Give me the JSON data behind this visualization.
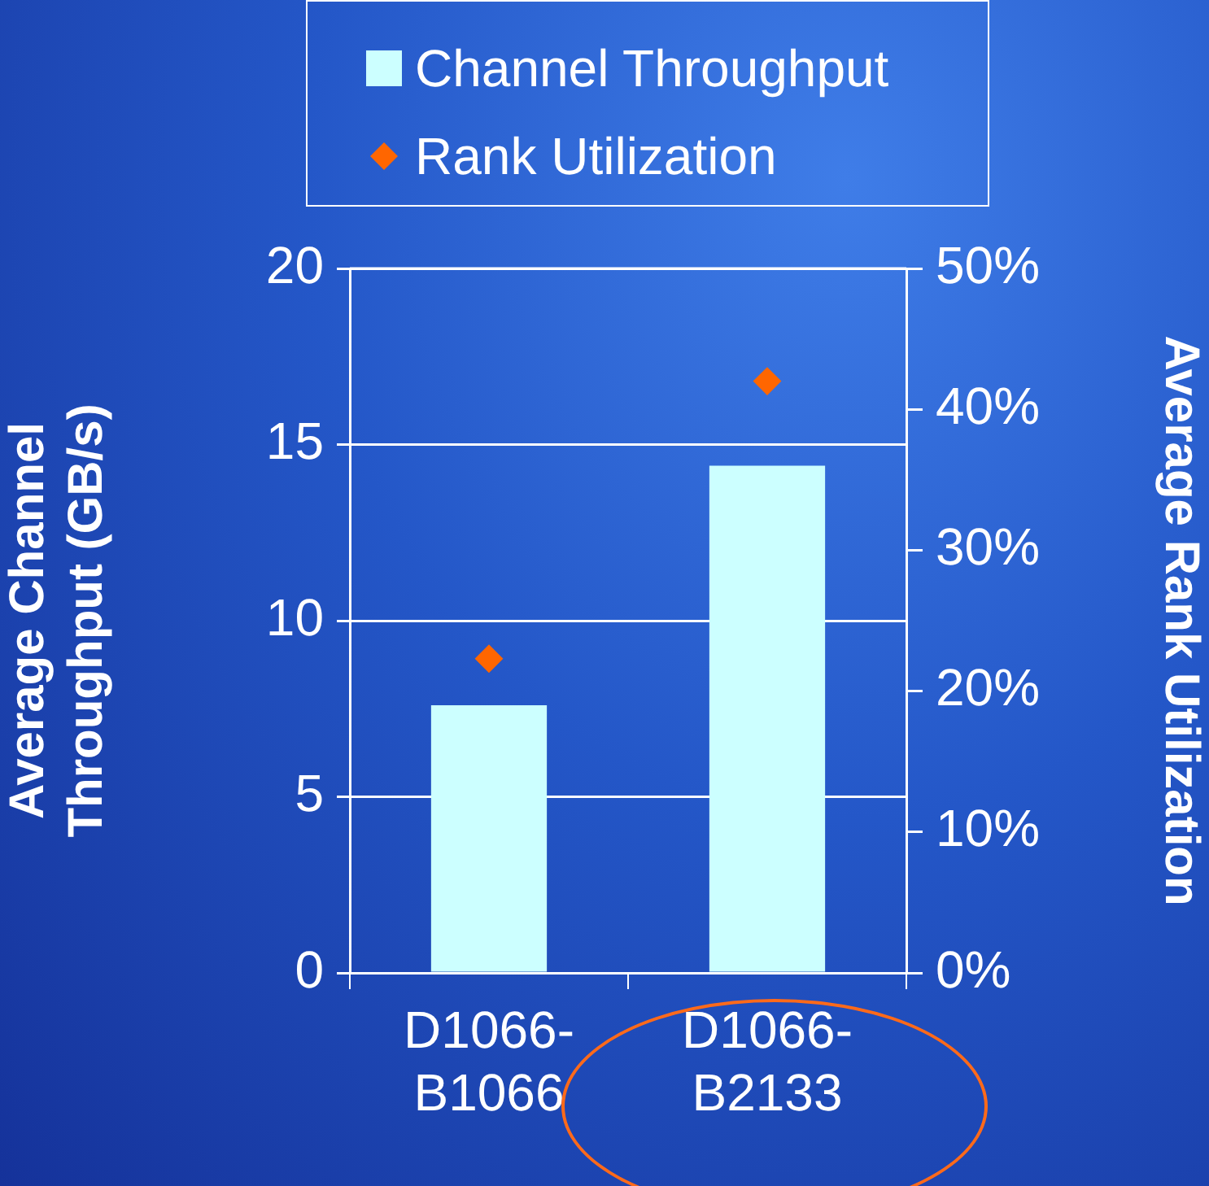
{
  "chart_data": {
    "type": "bar",
    "categories": [
      "D1066-B1066",
      "D1066-B2133"
    ],
    "series": [
      {
        "name": "Channel Throughput",
        "color": "#ccffff",
        "values": [
          7.6,
          14.4
        ]
      },
      {
        "name": "Rank Utilization",
        "type": "scatter",
        "axis": "y2",
        "color": "#ff6600",
        "marker": "diamond",
        "x": [
          "D1066-B1066",
          "D1066-B2133"
        ],
        "values": [
          22.3,
          42.0
        ]
      }
    ],
    "ylabel": "Average Channel Throughput (GB/s)",
    "y2label": "Average Rank Utilization",
    "ylim": [
      0,
      20
    ],
    "yticks": [
      0,
      5,
      10,
      15,
      20
    ],
    "y2lim": [
      0,
      50
    ],
    "y2ticks": [
      {
        "value": 0,
        "label": "0%"
      },
      {
        "value": 10,
        "label": "10%"
      },
      {
        "value": 20,
        "label": "20%"
      },
      {
        "value": 30,
        "label": "30%"
      },
      {
        "value": 40,
        "label": "40%"
      },
      {
        "value": 50,
        "label": "50%"
      }
    ],
    "grid": "y",
    "legend": "top"
  }
}
